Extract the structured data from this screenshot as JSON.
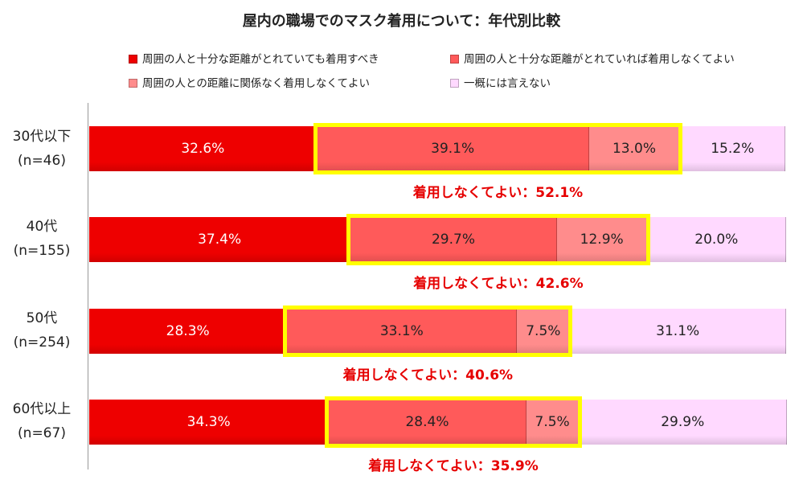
{
  "chart_data": {
    "type": "bar",
    "orientation": "horizontal-stacked-100",
    "title": "屋内の職場でのマスク着用について：年代別比較",
    "categories": [
      {
        "name": "30代以下",
        "n": "(n=46)"
      },
      {
        "name": "40代",
        "n": "(n=155)"
      },
      {
        "name": "50代",
        "n": "(n=254)"
      },
      {
        "name": "60代以上",
        "n": "(n=67)"
      }
    ],
    "series": [
      {
        "name": "周囲の人と十分な距離がとれていても着用すべき",
        "color": "#ee0000",
        "label_color": "#ffffff",
        "values": [
          32.6,
          37.4,
          28.3,
          34.3
        ],
        "labels": [
          "32.6%",
          "37.4%",
          "28.3%",
          "34.3%"
        ]
      },
      {
        "name": "周囲の人と十分な距離がとれていれば着用しなくてよい",
        "color": "#ff5a5a",
        "label_color": "#222222",
        "values": [
          39.1,
          29.7,
          33.1,
          28.4
        ],
        "labels": [
          "39.1%",
          "29.7%",
          "33.1%",
          "28.4%"
        ]
      },
      {
        "name": "周囲の人との距離に関係なく着用しなくてよい",
        "color": "#ff8c8c",
        "label_color": "#222222",
        "values": [
          13.0,
          12.9,
          7.5,
          7.5
        ],
        "labels": [
          "13.0%",
          "12.9%",
          "7.5%",
          "7.5%"
        ]
      },
      {
        "name": "一概には言えない",
        "color": "#ffd9ff",
        "label_color": "#222222",
        "values": [
          15.2,
          20.0,
          31.1,
          29.9
        ],
        "labels": [
          "15.2%",
          "20.0%",
          "31.1%",
          "29.9%"
        ]
      }
    ],
    "annotations": [
      "着用しなくてよい：52.1%",
      "着用しなくてよい：42.6%",
      "着用しなくてよい：40.6%",
      "着用しなくてよい：35.9%"
    ],
    "highlight_color": "#ffff00",
    "annotation_color": "#e60000",
    "xlim": [
      0,
      100
    ],
    "legend_position": "top",
    "grid": false
  }
}
